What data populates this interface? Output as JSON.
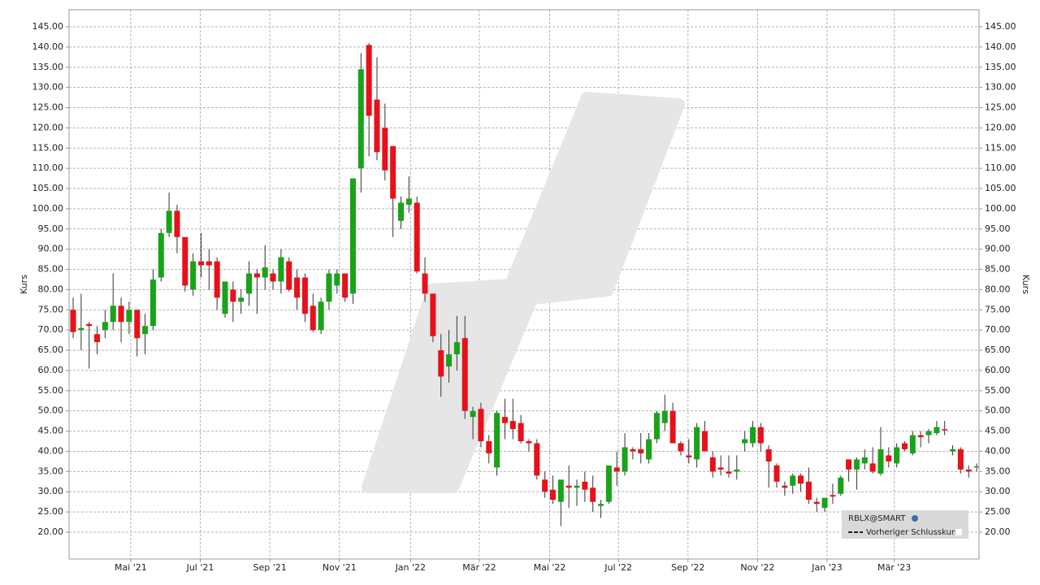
{
  "chart_data": {
    "type": "candlestick",
    "y_label": "Kurs",
    "series": [
      {
        "name": "RBLX@SMART",
        "up_color": "#18a318",
        "down_color": "#e8101a",
        "open": [
          75,
          70,
          71.5,
          69,
          70,
          72,
          76,
          72,
          75,
          69,
          71,
          83,
          94,
          99.5,
          93,
          80,
          87,
          87,
          87,
          74,
          80,
          77,
          79,
          84,
          83,
          84,
          82,
          87,
          83,
          83,
          76,
          70,
          77,
          81,
          84,
          79,
          110,
          140.5,
          127,
          120,
          115.5,
          97,
          101,
          101.5,
          84,
          79,
          65,
          61,
          64,
          68,
          48.5,
          50.5,
          42.5,
          36,
          48.5,
          47.5,
          47,
          42.5,
          42,
          33,
          30.5,
          27.5,
          31.5,
          31,
          32.5,
          31,
          26.5,
          27.5,
          36,
          35,
          40.5,
          40.5,
          38,
          43,
          47,
          50,
          42,
          39,
          38,
          45,
          38.5,
          36,
          35,
          35,
          42,
          42,
          46,
          40.5,
          36.5,
          31.5,
          31.5,
          34,
          32.5,
          27.5,
          26,
          29.2,
          29.5,
          38,
          35.5,
          37,
          37,
          34.5,
          39,
          37,
          42,
          39.5,
          44,
          44,
          44.5,
          45.5,
          40,
          40.5,
          35.5,
          36
        ],
        "high": [
          78,
          79,
          72,
          71,
          75,
          84,
          78,
          77,
          75,
          74,
          85,
          95,
          104,
          101,
          93,
          89,
          94,
          90,
          88,
          82,
          82,
          80,
          87,
          85,
          91,
          85,
          90,
          88,
          85,
          84,
          79,
          78,
          85,
          85,
          84,
          107.5,
          138.5,
          141,
          137.5,
          126,
          115.5,
          103,
          108,
          103,
          88,
          79,
          69,
          70,
          73.5,
          73.5,
          51,
          52,
          44,
          50,
          53,
          53,
          49,
          43,
          43,
          35,
          34,
          33,
          36.5,
          33,
          35,
          34,
          28,
          36.5,
          40,
          44.5,
          41,
          44.5,
          44.5,
          50,
          54,
          52,
          42.5,
          43,
          47,
          47.5,
          40,
          39,
          39,
          39,
          45,
          47.5,
          47,
          41.5,
          37,
          32.5,
          34.5,
          34.5,
          36,
          28.5,
          28.5,
          32,
          34,
          38,
          38.5,
          40.5,
          41,
          46,
          41,
          42,
          42.5,
          45,
          45,
          45.5,
          47.5,
          47.5,
          41.5,
          41,
          36.5,
          37
        ],
        "low": [
          68,
          65,
          60.5,
          64,
          68,
          70,
          67,
          69,
          63.5,
          64,
          70,
          82,
          93,
          89,
          79.5,
          78.5,
          83,
          80,
          75,
          73,
          72,
          74,
          76,
          74,
          80,
          80,
          79,
          79.5,
          75,
          72,
          69.5,
          69,
          75,
          79,
          77,
          76.5,
          104,
          113,
          112,
          107,
          93,
          95,
          99,
          84,
          77,
          67,
          53.5,
          57,
          60,
          48,
          43,
          41,
          37,
          34,
          43,
          43,
          42,
          40,
          33,
          28.5,
          27,
          21.5,
          26,
          26.5,
          27.5,
          25,
          23.5,
          27,
          31.5,
          34,
          38,
          37,
          37,
          42,
          45,
          42,
          39,
          37,
          36,
          40,
          33.5,
          34,
          33.5,
          33,
          40,
          41,
          40,
          31,
          31,
          29,
          29.5,
          30,
          27,
          25,
          25,
          27,
          29,
          32.5,
          30.5,
          35.5,
          34.5,
          34,
          36,
          36,
          40,
          39,
          41,
          42,
          44,
          44,
          39,
          34.5,
          33.5,
          35
        ],
        "close": [
          69.5,
          70.5,
          71,
          67,
          72,
          76,
          72,
          75,
          68,
          71,
          82.5,
          94,
          99.5,
          93,
          81,
          87,
          86,
          86,
          78,
          82,
          77,
          78,
          84,
          83,
          85.5,
          82,
          88,
          80,
          78,
          74,
          70,
          77,
          84,
          84,
          78,
          107.5,
          134.5,
          123,
          114,
          109.5,
          102.5,
          101.5,
          102.5,
          84.5,
          79,
          68.5,
          58.5,
          64,
          67,
          50,
          50,
          42.5,
          39.5,
          49.5,
          47,
          45.5,
          42.5,
          42,
          34,
          30,
          28,
          33,
          31,
          31.5,
          30.5,
          27.5,
          27,
          36.5,
          35,
          41,
          40,
          39.5,
          43,
          49.5,
          50,
          42,
          40,
          38.5,
          46,
          40,
          35,
          35.5,
          34.5,
          35.5,
          43,
          46,
          42,
          37.5,
          32.5,
          31,
          34,
          32,
          28,
          27,
          28.5,
          28.8,
          33.5,
          35.5,
          38,
          38.5,
          35,
          40.5,
          37.5,
          41,
          40.5,
          44,
          43.5,
          45,
          46,
          45.3,
          40.5,
          35.5,
          35,
          36.3
        ]
      }
    ],
    "previous_close_label": "Vorheriger Schlusskurs",
    "xlim": [
      -0.51,
      113.3
    ],
    "xticks": [
      {
        "value": 7.2,
        "label": "Mai '21"
      },
      {
        "value": 15.9,
        "label": "Jul '21"
      },
      {
        "value": 24.6,
        "label": "Sep '21"
      },
      {
        "value": 33.3,
        "label": "Nov '21"
      },
      {
        "value": 42.2,
        "label": "Jan '22"
      },
      {
        "value": 50.8,
        "label": "Mär '22"
      },
      {
        "value": 59.6,
        "label": "Mai '22"
      },
      {
        "value": 68.2,
        "label": "Jul '22"
      },
      {
        "value": 76.9,
        "label": "Sep '22"
      },
      {
        "value": 85.6,
        "label": "Nov '22"
      },
      {
        "value": 94.3,
        "label": "Jan '23"
      },
      {
        "value": 102.7,
        "label": "Mär '23"
      }
    ],
    "ylim": [
      13.37,
      149.22
    ],
    "yticks": [
      {
        "value": 20,
        "label": "20.00"
      },
      {
        "value": 25,
        "label": "25.00"
      },
      {
        "value": 30,
        "label": "30.00"
      },
      {
        "value": 35,
        "label": "35.00"
      },
      {
        "value": 40,
        "label": "40.00"
      },
      {
        "value": 45,
        "label": "45.00"
      },
      {
        "value": 50,
        "label": "50.00"
      },
      {
        "value": 55,
        "label": "55.00"
      },
      {
        "value": 60,
        "label": "60.00"
      },
      {
        "value": 65,
        "label": "65.00"
      },
      {
        "value": 70,
        "label": "70.00"
      },
      {
        "value": 75,
        "label": "75.00"
      },
      {
        "value": 80,
        "label": "80.00"
      },
      {
        "value": 85,
        "label": "85.00"
      },
      {
        "value": 90,
        "label": "90.00"
      },
      {
        "value": 95,
        "label": "95.00"
      },
      {
        "value": 100,
        "label": "100.00"
      },
      {
        "value": 105,
        "label": "105.00"
      },
      {
        "value": 110,
        "label": "110.00"
      },
      {
        "value": 115,
        "label": "115.00"
      },
      {
        "value": 120,
        "label": "120.00"
      },
      {
        "value": 125,
        "label": "125.00"
      },
      {
        "value": 130,
        "label": "130.00"
      },
      {
        "value": 135,
        "label": "135.00"
      },
      {
        "value": 140,
        "label": "140.00"
      },
      {
        "value": 145,
        "label": "145.00"
      }
    ],
    "grid": true
  }
}
